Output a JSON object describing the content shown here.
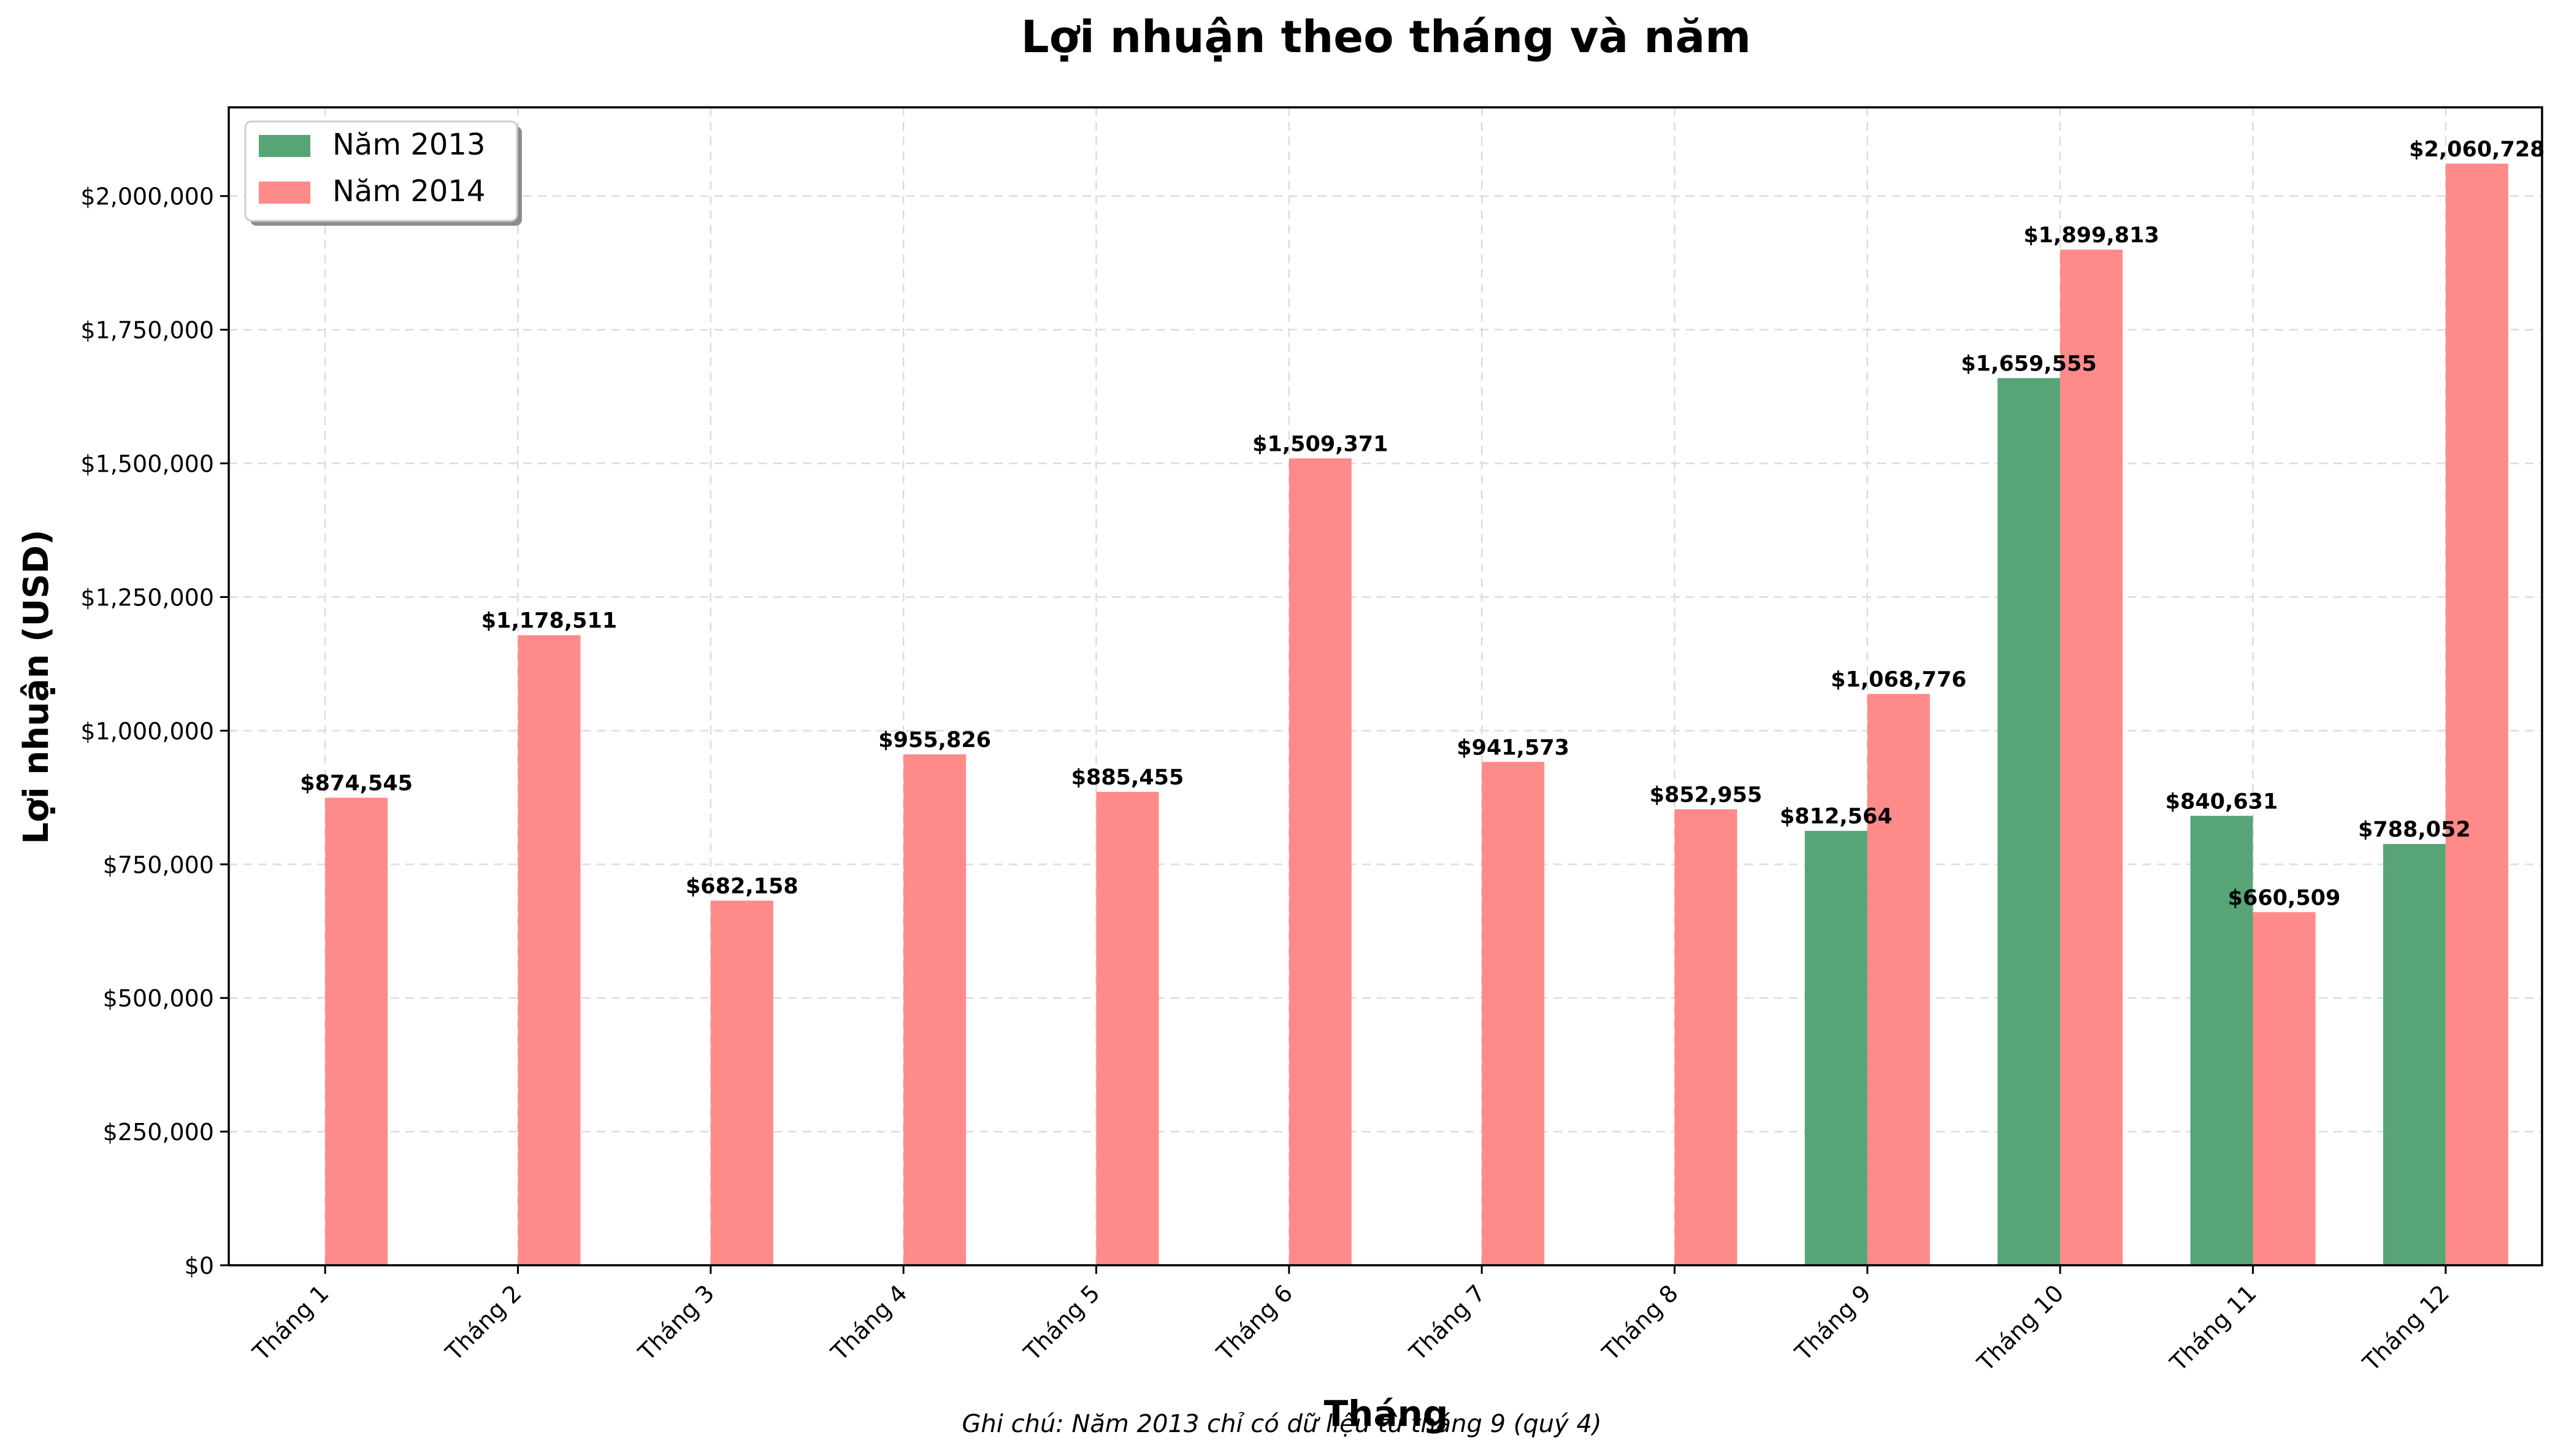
{
  "chart_data": {
    "type": "bar",
    "title": "Lợi nhuận theo tháng và năm",
    "xlabel": "Tháng",
    "ylabel": "Lợi nhuận (USD)",
    "note": "Ghi chú: Năm 2013 chỉ có dữ liệu từ tháng 9 (quý 4)",
    "categories": [
      "Tháng 1",
      "Tháng 2",
      "Tháng 3",
      "Tháng 4",
      "Tháng 5",
      "Tháng 6",
      "Tháng 7",
      "Tháng 8",
      "Tháng 9",
      "Tháng 10",
      "Tháng 11",
      "Tháng 12"
    ],
    "series": [
      {
        "name": "Năm 2013",
        "color": "#57a477",
        "values": [
          null,
          null,
          null,
          null,
          null,
          null,
          null,
          null,
          812564,
          1659555,
          840631,
          788052
        ],
        "labels": [
          null,
          null,
          null,
          null,
          null,
          null,
          null,
          null,
          "$812,564",
          "$1,659,555",
          "$840,631",
          "$788,052"
        ]
      },
      {
        "name": "Năm 2014",
        "color": "#ff8a8a",
        "values": [
          874545,
          1178511,
          682158,
          955826,
          885455,
          1509371,
          941573,
          852955,
          1068776,
          1899813,
          660509,
          2060728
        ],
        "labels": [
          "$874,545",
          "$1,178,511",
          "$682,158",
          "$955,826",
          "$885,455",
          "$1,509,371",
          "$941,573",
          "$852,955",
          "$1,068,776",
          "$1,899,813",
          "$660,509",
          "$2,060,728"
        ]
      }
    ],
    "ylim": [
      0,
      2166000
    ],
    "yticks": [
      0,
      250000,
      500000,
      750000,
      1000000,
      1250000,
      1500000,
      1750000,
      2000000
    ],
    "ytick_labels": [
      "$0",
      "$250,000",
      "$500,000",
      "$750,000",
      "$1,000,000",
      "$1,250,000",
      "$1,500,000",
      "$1,750,000",
      "$2,000,000"
    ],
    "grid": true,
    "legend_position": "top-left"
  }
}
